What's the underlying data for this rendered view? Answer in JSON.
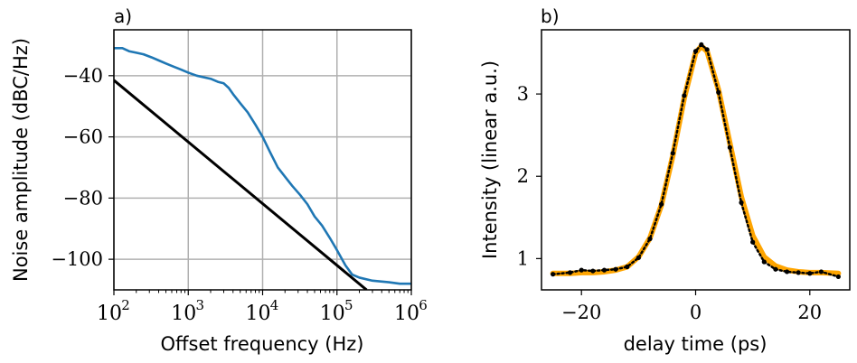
{
  "chart_data": [
    {
      "panel_label": "a)",
      "type": "line",
      "xscale": "log",
      "grid": true,
      "xlabel": "Offset frequency (Hz)",
      "ylabel": "Noise amplitude (dBC/Hz)",
      "xlim": [
        100,
        1000000
      ],
      "ylim": [
        -110,
        -25
      ],
      "xticks": [
        {
          "value": 100,
          "base": "10",
          "exp": "2"
        },
        {
          "value": 1000,
          "base": "10",
          "exp": "3"
        },
        {
          "value": 10000,
          "base": "10",
          "exp": "4"
        },
        {
          "value": 100000,
          "base": "10",
          "exp": "5"
        },
        {
          "value": 1000000,
          "base": "10",
          "exp": "6"
        }
      ],
      "yticks": [
        {
          "value": -40,
          "label": "−40"
        },
        {
          "value": -60,
          "label": "−60"
        },
        {
          "value": -80,
          "label": "−80"
        },
        {
          "value": -100,
          "label": "−100"
        }
      ],
      "series": [
        {
          "color": "#1f77b4",
          "x": [
            100,
            130,
            160,
            200,
            250,
            320,
            400,
            500,
            630,
            800,
            1000,
            1300,
            1600,
            2000,
            2500,
            3000,
            3500,
            4000,
            5000,
            6300,
            8000,
            10000,
            12600,
            16000,
            20000,
            25000,
            32000,
            40000,
            50000,
            63000,
            80000,
            100000,
            130000,
            160000,
            200000,
            300000,
            500000,
            700000,
            1000000
          ],
          "y": [
            -31,
            -31,
            -32,
            -32.5,
            -33,
            -34,
            -35,
            -36,
            -37,
            -38,
            -39,
            -40,
            -40.5,
            -41,
            -42,
            -42.5,
            -44,
            -46,
            -49,
            -52,
            -56,
            -60,
            -65,
            -70,
            -73,
            -76,
            -79,
            -82,
            -86,
            -89,
            -93,
            -97,
            -102,
            -105,
            -106,
            -107,
            -107.5,
            -108,
            -108
          ]
        },
        {
          "color": "#000000",
          "x": [
            100,
            250000
          ],
          "y": [
            -41.5,
            -110
          ]
        }
      ]
    },
    {
      "panel_label": "b)",
      "type": "line",
      "xlabel": "delay time (ps)",
      "ylabel": "Intensity (linear a.u.)",
      "xlim": [
        -27,
        27
      ],
      "ylim": [
        0.62,
        3.78
      ],
      "xticks": [
        {
          "value": -20,
          "label": "−20"
        },
        {
          "value": 0,
          "label": "0"
        },
        {
          "value": 20,
          "label": "20"
        }
      ],
      "yticks": [
        {
          "value": 1,
          "label": "1"
        },
        {
          "value": 2,
          "label": "2"
        },
        {
          "value": 3,
          "label": "3"
        }
      ],
      "series": [
        {
          "style": "fit",
          "color": "#ffa500",
          "x": [
            -25,
            -22,
            -20,
            -18,
            -16,
            -14,
            -12,
            -10,
            -8,
            -6,
            -4,
            -2,
            0,
            1,
            2,
            4,
            6,
            8,
            10,
            12,
            14,
            16,
            18,
            20,
            22,
            25
          ],
          "y": [
            0.82,
            0.82,
            0.83,
            0.83,
            0.84,
            0.86,
            0.9,
            1.02,
            1.25,
            1.65,
            2.25,
            2.95,
            3.5,
            3.58,
            3.52,
            3.05,
            2.4,
            1.75,
            1.28,
            1.02,
            0.91,
            0.86,
            0.84,
            0.83,
            0.83,
            0.82
          ]
        },
        {
          "style": "data",
          "color": "#000000",
          "x": [
            -25,
            -22,
            -20,
            -18,
            -16,
            -14,
            -12,
            -10,
            -8,
            -6,
            -4,
            -2,
            0,
            1,
            2,
            4,
            6,
            8,
            10,
            12,
            14,
            16,
            18,
            20,
            22,
            25
          ],
          "y": [
            0.81,
            0.83,
            0.86,
            0.85,
            0.86,
            0.87,
            0.9,
            1.01,
            1.24,
            1.66,
            2.28,
            2.98,
            3.52,
            3.6,
            3.54,
            3.02,
            2.35,
            1.68,
            1.2,
            0.96,
            0.87,
            0.84,
            0.83,
            0.82,
            0.84,
            0.78
          ]
        }
      ]
    }
  ]
}
